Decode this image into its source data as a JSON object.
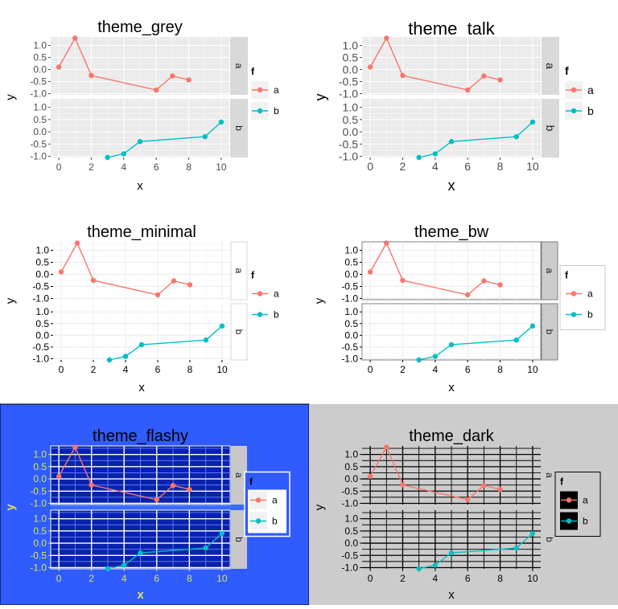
{
  "page": {
    "legend_title": "f",
    "legend_labels": [
      "a",
      "b"
    ],
    "x_label": "x",
    "y_label": "y",
    "x_ticks": [
      0,
      2,
      4,
      6,
      8,
      10
    ],
    "y_ticks": [
      -1.0,
      -0.5,
      0.0,
      0.5,
      1.0
    ],
    "y_tick_labels": [
      "-1.0",
      "-0.5",
      "0.0",
      "0.5",
      "1.0"
    ],
    "facet_labels": [
      "a",
      "b"
    ]
  },
  "series_colors": {
    "a": "#F8766D",
    "b": "#00BFC4"
  },
  "chart_data": [
    {
      "type": "line",
      "title": "theme_grey",
      "theme": "grey",
      "xlabel": "x",
      "ylabel": "y",
      "xlim": [
        -0.5,
        10.5
      ],
      "ylim": [
        -1.05,
        1.35
      ],
      "facets": [
        "a",
        "b"
      ],
      "legend_title": "f",
      "legend": "right",
      "series": [
        {
          "name": "a",
          "points": [
            [
              0,
              0.1
            ],
            [
              1,
              1.3
            ],
            [
              2,
              -0.25
            ],
            [
              6,
              -0.85
            ],
            [
              7,
              -0.27
            ],
            [
              8,
              -0.43
            ]
          ]
        },
        {
          "name": "b",
          "points": [
            [
              3,
              -1.05
            ],
            [
              4,
              -0.9
            ],
            [
              5,
              -0.4
            ],
            [
              9,
              -0.2
            ],
            [
              10,
              0.4
            ]
          ]
        }
      ]
    },
    {
      "type": "line",
      "title": "theme_talk",
      "theme": "talk",
      "xlabel": "x",
      "ylabel": "y",
      "xlim": [
        -0.5,
        10.5
      ],
      "ylim": [
        -1.05,
        1.35
      ],
      "facets": [
        "a",
        "b"
      ],
      "legend_title": "f",
      "legend": "right",
      "series": [
        {
          "name": "a",
          "points": [
            [
              0,
              0.1
            ],
            [
              1,
              1.3
            ],
            [
              2,
              -0.25
            ],
            [
              6,
              -0.85
            ],
            [
              7,
              -0.27
            ],
            [
              8,
              -0.43
            ]
          ]
        },
        {
          "name": "b",
          "points": [
            [
              3,
              -1.05
            ],
            [
              4,
              -0.9
            ],
            [
              5,
              -0.4
            ],
            [
              9,
              -0.2
            ],
            [
              10,
              0.4
            ]
          ]
        }
      ]
    },
    {
      "type": "line",
      "title": "theme_minimal",
      "theme": "minimal",
      "xlabel": "x",
      "ylabel": "y",
      "xlim": [
        -0.5,
        10.5
      ],
      "ylim": [
        -1.05,
        1.35
      ],
      "facets": [
        "a",
        "b"
      ],
      "legend_title": "f",
      "legend": "right",
      "series": [
        {
          "name": "a",
          "points": [
            [
              0,
              0.1
            ],
            [
              1,
              1.3
            ],
            [
              2,
              -0.25
            ],
            [
              6,
              -0.85
            ],
            [
              7,
              -0.27
            ],
            [
              8,
              -0.43
            ]
          ]
        },
        {
          "name": "b",
          "points": [
            [
              3,
              -1.05
            ],
            [
              4,
              -0.9
            ],
            [
              5,
              -0.4
            ],
            [
              9,
              -0.2
            ],
            [
              10,
              0.4
            ]
          ]
        }
      ]
    },
    {
      "type": "line",
      "title": "theme_bw",
      "theme": "bw",
      "xlabel": "x",
      "ylabel": "y",
      "xlim": [
        -0.5,
        10.5
      ],
      "ylim": [
        -1.05,
        1.35
      ],
      "facets": [
        "a",
        "b"
      ],
      "legend_title": "f",
      "legend": "right",
      "series": [
        {
          "name": "a",
          "points": [
            [
              0,
              0.1
            ],
            [
              1,
              1.3
            ],
            [
              2,
              -0.25
            ],
            [
              6,
              -0.85
            ],
            [
              7,
              -0.27
            ],
            [
              8,
              -0.43
            ]
          ]
        },
        {
          "name": "b",
          "points": [
            [
              3,
              -1.05
            ],
            [
              4,
              -0.9
            ],
            [
              5,
              -0.4
            ],
            [
              9,
              -0.2
            ],
            [
              10,
              0.4
            ]
          ]
        }
      ]
    },
    {
      "type": "line",
      "title": "theme_flashy",
      "theme": "flashy",
      "xlabel": "x",
      "ylabel": "y",
      "xlim": [
        -0.5,
        10.5
      ],
      "ylim": [
        -1.05,
        1.35
      ],
      "facets": [
        "a",
        "b"
      ],
      "legend_title": "f",
      "legend": "right",
      "series": [
        {
          "name": "a",
          "points": [
            [
              0,
              0.1
            ],
            [
              1,
              1.3
            ],
            [
              2,
              -0.25
            ],
            [
              6,
              -0.85
            ],
            [
              7,
              -0.27
            ],
            [
              8,
              -0.43
            ]
          ]
        },
        {
          "name": "b",
          "points": [
            [
              3,
              -1.05
            ],
            [
              4,
              -0.9
            ],
            [
              5,
              -0.4
            ],
            [
              9,
              -0.2
            ],
            [
              10,
              0.4
            ]
          ]
        }
      ]
    },
    {
      "type": "line",
      "title": "theme_dark",
      "theme": "dark",
      "xlabel": "x",
      "ylabel": "y",
      "xlim": [
        -0.5,
        10.5
      ],
      "ylim": [
        -1.05,
        1.35
      ],
      "facets": [
        "a",
        "b"
      ],
      "legend_title": "f",
      "legend": "right",
      "series": [
        {
          "name": "a",
          "points": [
            [
              0,
              0.1
            ],
            [
              1,
              1.3
            ],
            [
              2,
              -0.25
            ],
            [
              6,
              -0.85
            ],
            [
              7,
              -0.27
            ],
            [
              8,
              -0.43
            ]
          ]
        },
        {
          "name": "b",
          "points": [
            [
              3,
              -1.05
            ],
            [
              4,
              -0.9
            ],
            [
              5,
              -0.4
            ],
            [
              9,
              -0.2
            ],
            [
              10,
              0.4
            ]
          ]
        }
      ]
    }
  ]
}
